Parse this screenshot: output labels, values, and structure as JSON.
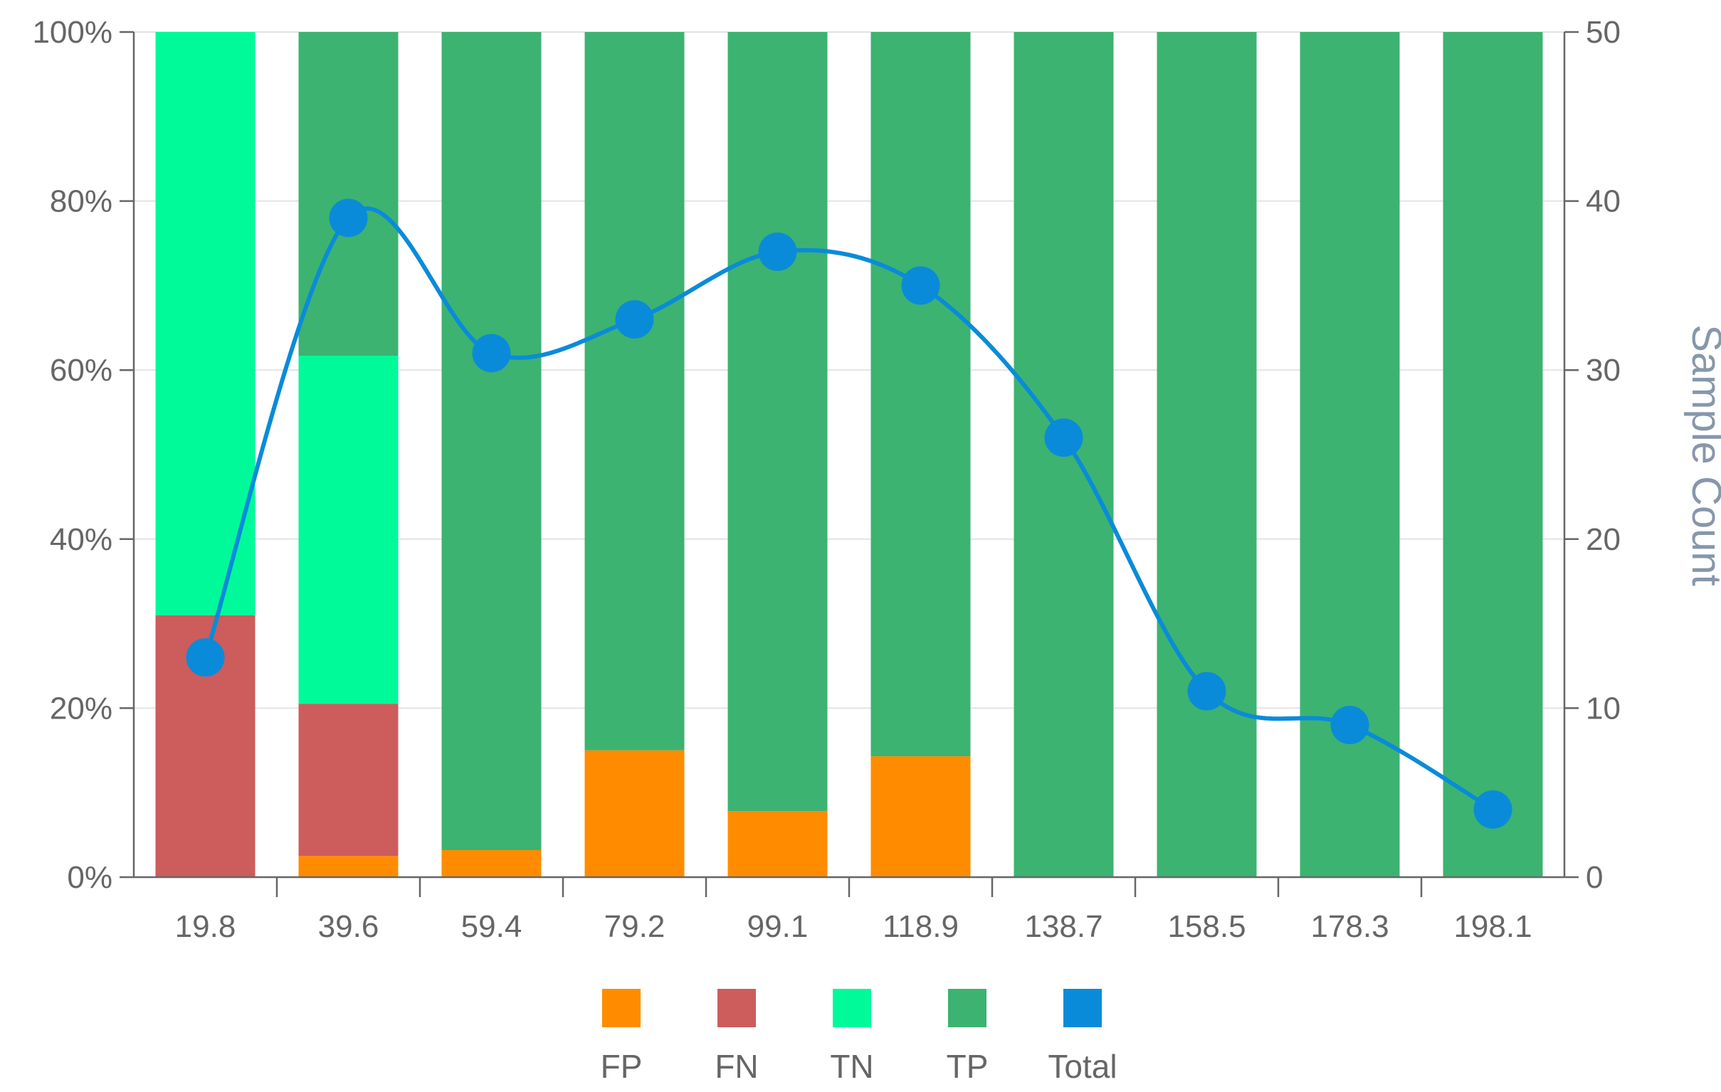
{
  "chart_data": {
    "type": "bar",
    "stacked": true,
    "categories": [
      "19.8",
      "39.6",
      "59.4",
      "79.2",
      "99.1",
      "118.9",
      "138.7",
      "158.5",
      "178.3",
      "198.1"
    ],
    "series": [
      {
        "name": "FP",
        "type": "bar",
        "axis": "left",
        "color": "#ff8c00",
        "values": [
          0,
          2.5,
          3.2,
          15,
          7.8,
          14.3,
          0,
          0,
          0,
          0
        ]
      },
      {
        "name": "FN",
        "type": "bar",
        "axis": "left",
        "color": "#cd5c5c",
        "values": [
          31,
          18,
          0,
          0,
          0,
          0,
          0,
          0,
          0,
          0
        ]
      },
      {
        "name": "TN",
        "type": "bar",
        "axis": "left",
        "color": "#00fa9a",
        "values": [
          69,
          41.2,
          0,
          0,
          0,
          0,
          0,
          0,
          0,
          0
        ]
      },
      {
        "name": "TP",
        "type": "bar",
        "axis": "left",
        "color": "#3cb371",
        "values": [
          0,
          38.3,
          96.8,
          85,
          92.2,
          85.7,
          100,
          100,
          100,
          100
        ]
      },
      {
        "name": "Total",
        "type": "line",
        "axis": "right",
        "color": "#0a8bd9",
        "values": [
          13,
          39,
          31,
          33,
          37,
          35,
          26,
          11,
          9,
          4
        ]
      }
    ],
    "y_left": {
      "ticks": [
        "0%",
        "20%",
        "40%",
        "60%",
        "80%",
        "100%"
      ],
      "min": 0,
      "max": 100
    },
    "y_right": {
      "label": "Sample Count",
      "ticks": [
        "0",
        "10",
        "20",
        "30",
        "40",
        "50"
      ],
      "min": 0,
      "max": 50
    },
    "grid": true,
    "legend": "bottom"
  }
}
